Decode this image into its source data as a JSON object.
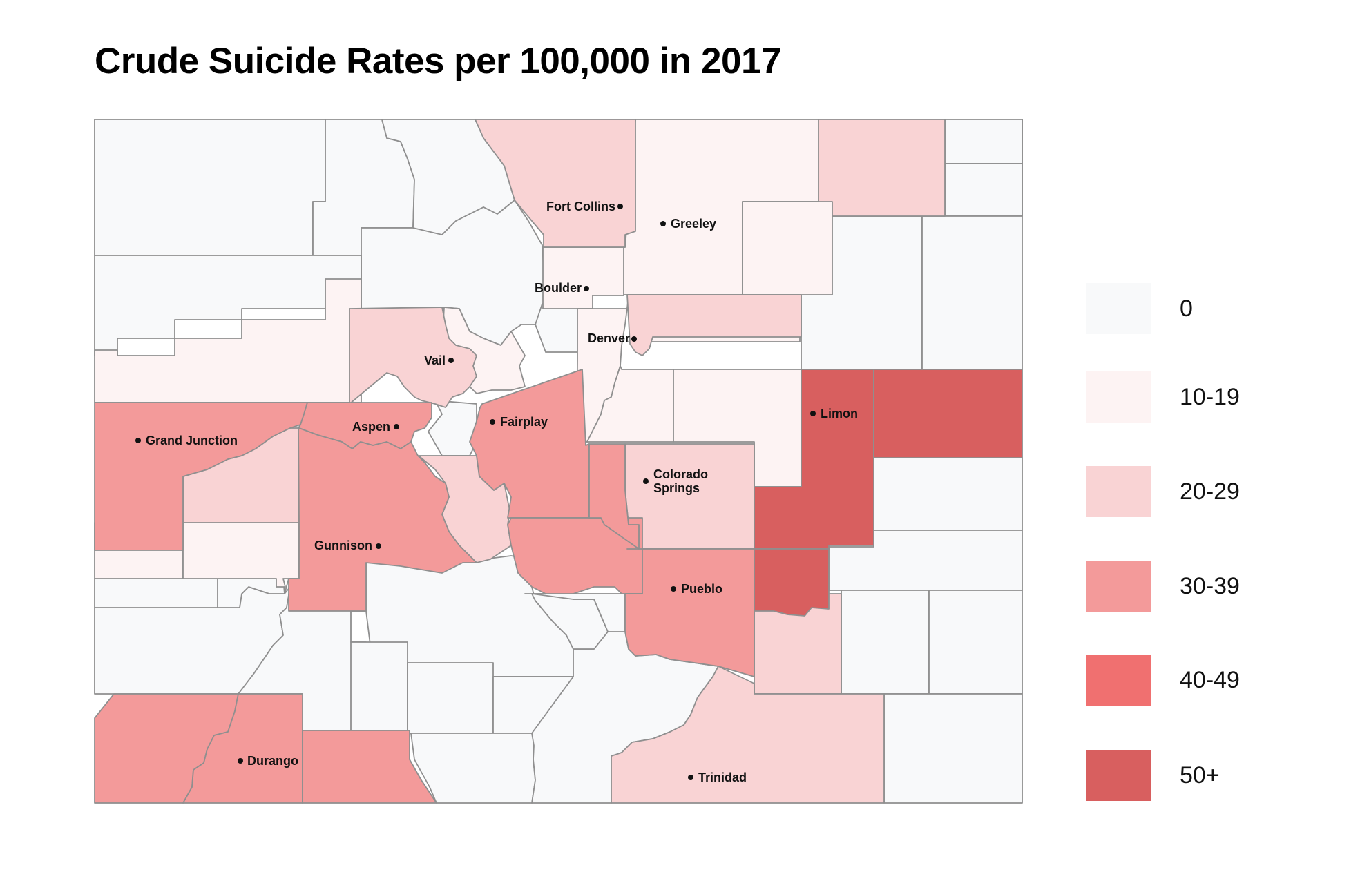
{
  "title": "Crude Suicide Rates per 100,000 in 2017",
  "colors": {
    "border": "#8f8f8f",
    "bin_0": "#f8f9fa",
    "bin_10_19": "#fdf3f3",
    "bin_20_29": "#f9d3d4",
    "bin_30_39": "#f39a9a",
    "bin_40_49": "#f07070",
    "bin_50_plus": "#d85f5f"
  },
  "legend": {
    "items": [
      {
        "label": "0",
        "color": "#f8f9fa"
      },
      {
        "label": "10-19",
        "color": "#fdf3f3"
      },
      {
        "label": "20-29",
        "color": "#f9d3d4"
      },
      {
        "label": "30-39",
        "color": "#f39a9a"
      },
      {
        "label": "40-49",
        "color": "#f07070"
      },
      {
        "label": "50+",
        "color": "#d85f5f"
      }
    ]
  },
  "cities": [
    {
      "name": "Fort Collins"
    },
    {
      "name": "Greeley"
    },
    {
      "name": "Boulder"
    },
    {
      "name": "Denver"
    },
    {
      "name": "Vail"
    },
    {
      "name": "Aspen"
    },
    {
      "name": "Fairplay"
    },
    {
      "name": "Grand Junction"
    },
    {
      "name": "Limon"
    },
    {
      "name": "Colorado",
      "name2": "Springs"
    },
    {
      "name": "Gunnison"
    },
    {
      "name": "Pueblo"
    },
    {
      "name": "Durango"
    },
    {
      "name": "Trinidad"
    }
  ]
}
